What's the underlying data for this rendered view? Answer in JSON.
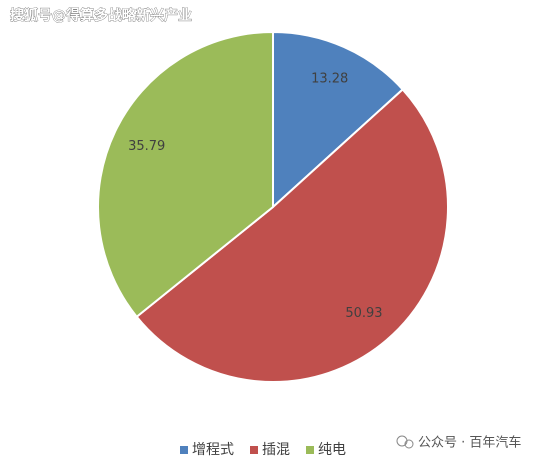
{
  "chart_data": {
    "type": "pie",
    "categories": [
      "增程式",
      "插混",
      "纯电"
    ],
    "values": [
      13.28,
      50.93,
      35.79
    ],
    "colors": [
      "#4f81bd",
      "#c0504d",
      "#9bbb59"
    ],
    "legend": "bottom"
  },
  "watermark": "搜狐号@得算多战略新兴产业",
  "source_badge": "公众号 · 百年汽车"
}
